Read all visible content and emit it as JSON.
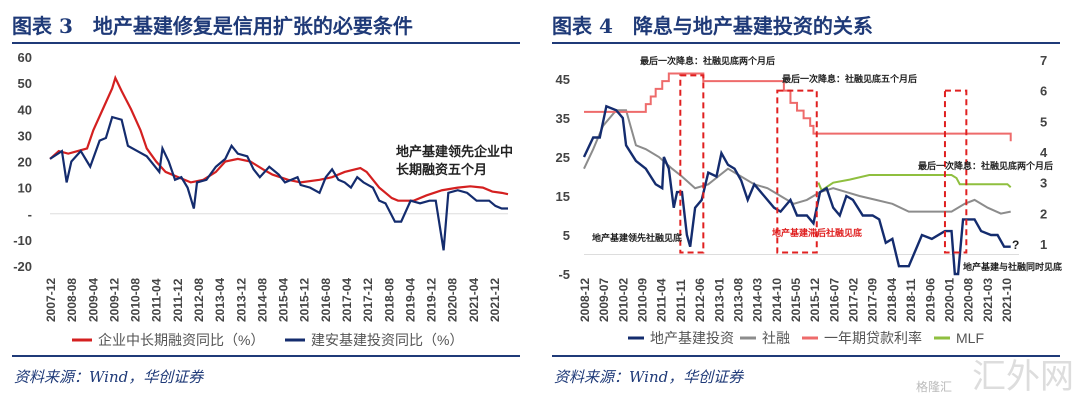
{
  "source": "资料来源：Wind，华创证券",
  "watermark": "汇外网",
  "watermark2": "格隆汇",
  "chart_data": [
    {
      "type": "line",
      "title": "图表 3　地产基建修复是信用扩张的必要条件",
      "ylim": [
        -20,
        60
      ],
      "yticks": [
        "60",
        "50",
        "40",
        "30",
        "20",
        "10",
        "-",
        "-10",
        "-20"
      ],
      "ytick_values": [
        60,
        50,
        40,
        30,
        20,
        10,
        0,
        -10,
        -20
      ],
      "xticks": [
        "2007-12",
        "2008-08",
        "2009-04",
        "2009-12",
        "2010-08",
        "2011-04",
        "2011-12",
        "2012-08",
        "2013-04",
        "2013-12",
        "2014-08",
        "2015-04",
        "2015-12",
        "2016-08",
        "2017-04",
        "2017-12",
        "2018-08",
        "2019-04",
        "2019-12",
        "2020-08",
        "2021-04",
        "2021-12"
      ],
      "xlim": [
        2007.92,
        2022.5
      ],
      "annotation": [
        "地产基建领先企业中",
        "长期融资五个月"
      ],
      "series": [
        {
          "name": "企业中长期融资同比（%）",
          "color": "#d42020",
          "x": [
            2007.92,
            2008.2,
            2008.5,
            2008.8,
            2009.1,
            2009.3,
            2009.6,
            2009.9,
            2010.0,
            2010.2,
            2010.5,
            2010.8,
            2011.0,
            2011.3,
            2011.6,
            2012.0,
            2012.4,
            2012.8,
            2013.2,
            2013.5,
            2013.9,
            2014.3,
            2014.7,
            2015.0,
            2015.5,
            2015.9,
            2016.5,
            2016.9,
            2017.3,
            2017.8,
            2018.0,
            2018.4,
            2018.8,
            2019.0,
            2019.5,
            2019.9,
            2020.4,
            2020.9,
            2021.3,
            2021.7,
            2022.0,
            2022.3,
            2022.5
          ],
          "y": [
            21,
            24,
            23,
            24,
            25,
            32,
            40,
            48,
            52,
            47,
            40,
            32,
            25,
            20,
            16,
            14,
            12,
            13,
            16,
            20,
            21,
            20,
            17,
            15,
            13,
            12,
            13,
            14,
            16,
            17.5,
            16,
            10,
            6,
            5,
            5,
            7,
            9,
            10,
            10.5,
            10,
            8.5,
            8,
            7.5
          ]
        },
        {
          "name": "建安基建投资同比（%）",
          "color": "#142c6e",
          "x": [
            2007.92,
            2008.3,
            2008.45,
            2008.6,
            2008.9,
            2009.1,
            2009.2,
            2009.5,
            2009.7,
            2009.9,
            2010.2,
            2010.4,
            2010.7,
            2011.0,
            2011.2,
            2011.4,
            2011.5,
            2011.7,
            2011.9,
            2012.1,
            2012.3,
            2012.5,
            2012.6,
            2012.9,
            2013.2,
            2013.5,
            2013.7,
            2013.9,
            2014.2,
            2014.4,
            2014.6,
            2014.9,
            2015.2,
            2015.4,
            2015.8,
            2015.9,
            2016.2,
            2016.5,
            2016.7,
            2016.9,
            2017.1,
            2017.3,
            2017.5,
            2017.7,
            2017.9,
            2018.2,
            2018.4,
            2018.6,
            2018.9,
            2019.1,
            2019.4,
            2019.7,
            2020.0,
            2020.2,
            2020.45,
            2020.6,
            2020.9,
            2021.2,
            2021.5,
            2021.9,
            2022.1,
            2022.3,
            2022.5
          ],
          "y": [
            21,
            24,
            12,
            20,
            24,
            20,
            18,
            28,
            29,
            37,
            36,
            26,
            24,
            22,
            19,
            16,
            25,
            20,
            13,
            14,
            10,
            2,
            12,
            13,
            18,
            21,
            26,
            23,
            22,
            17,
            14,
            18,
            15,
            12,
            14,
            11,
            10,
            8,
            14,
            17,
            13,
            12,
            10,
            14,
            12,
            10,
            5,
            4,
            -3,
            -3,
            5,
            4,
            5,
            5,
            -14,
            8,
            9,
            8,
            5,
            5,
            3,
            2,
            2
          ]
        }
      ]
    },
    {
      "type": "line",
      "title": "图表 4　降息与地产基建投资的关系",
      "ylim": [
        -5,
        50
      ],
      "ylim_right": [
        0,
        7
      ],
      "yticks": [
        "45",
        "35",
        "25",
        "15",
        "5",
        "-5"
      ],
      "ytick_values": [
        45,
        35,
        25,
        15,
        5,
        -5
      ],
      "yticks_right": [
        "7",
        "6",
        "5",
        "4",
        "3",
        "2",
        "1"
      ],
      "ytick_right_values": [
        7,
        6,
        5,
        4,
        3,
        2,
        1
      ],
      "xticks": [
        "2008-12",
        "2009-07",
        "2010-02",
        "2010-09",
        "2011-04",
        "2011-11",
        "2012-06",
        "2013-01",
        "2013-08",
        "2014-03",
        "2014-10",
        "2015-05",
        "2015-12",
        "2016-07",
        "2017-02",
        "2017-09",
        "2018-04",
        "2018-11",
        "2019-06",
        "2020-01",
        "2020-08",
        "2021-03",
        "2021-10"
      ],
      "xlim": [
        2008.92,
        2022.0
      ],
      "annotations": [
        "最后一次降息：社融见底两个月后",
        "最后一次降息：社融见底五个月后",
        "最后一次降息：社融见底两个月后",
        "地产基建领先社融见底",
        "地产基建滞后社融见底",
        "地产基建与社融同时见底",
        "?"
      ],
      "highlight_boxes": [
        [
          2011.85,
          2012.55
        ],
        [
          2014.8,
          2016.0
        ],
        [
          2019.9,
          2020.55
        ]
      ],
      "series": [
        {
          "name": "地产基建投资",
          "axis": "left",
          "color": "#142c6e",
          "x": [
            2008.92,
            2009.2,
            2009.4,
            2009.6,
            2009.9,
            2010.1,
            2010.2,
            2010.5,
            2010.8,
            2011.1,
            2011.3,
            2011.35,
            2011.5,
            2011.65,
            2011.75,
            2011.9,
            2012.05,
            2012.15,
            2012.3,
            2012.5,
            2012.7,
            2012.95,
            2013.1,
            2013.3,
            2013.5,
            2013.7,
            2013.9,
            2014.1,
            2014.4,
            2014.7,
            2014.9,
            2015.2,
            2015.4,
            2015.7,
            2015.9,
            2016.1,
            2016.3,
            2016.5,
            2016.7,
            2016.9,
            2017.1,
            2017.4,
            2017.7,
            2017.9,
            2018.1,
            2018.3,
            2018.5,
            2018.8,
            2019.0,
            2019.2,
            2019.5,
            2019.9,
            2020.1,
            2020.2,
            2020.3,
            2020.45,
            2020.8,
            2021.0,
            2021.3,
            2021.5,
            2021.7,
            2021.9
          ],
          "y": [
            25,
            30,
            30,
            38,
            37,
            35,
            28,
            24,
            22,
            18,
            17,
            25,
            22,
            12,
            16,
            16,
            5,
            2,
            12,
            14,
            21,
            20,
            26,
            23,
            22,
            19,
            14,
            18,
            15,
            12,
            11,
            14,
            10,
            10,
            8,
            16,
            17,
            12,
            10,
            15,
            14,
            10,
            10,
            9,
            3,
            4,
            -3,
            -3,
            1,
            5,
            4,
            6,
            6,
            -5,
            -5,
            9,
            9,
            6,
            5,
            5,
            2,
            2
          ]
        },
        {
          "name": "社融",
          "axis": "left",
          "color": "#8c8c8c",
          "x": [
            2008.92,
            2009.2,
            2009.5,
            2009.9,
            2010.2,
            2010.5,
            2010.8,
            2011.2,
            2011.6,
            2011.9,
            2012.3,
            2012.7,
            2013.0,
            2013.3,
            2013.7,
            2014.1,
            2014.5,
            2014.9,
            2015.3,
            2015.7,
            2016.1,
            2016.5,
            2016.9,
            2017.3,
            2017.8,
            2018.3,
            2018.8,
            2019.2,
            2019.7,
            2020.1,
            2020.5,
            2020.8,
            2021.2,
            2021.6,
            2021.9
          ],
          "y": [
            22,
            27,
            33,
            37,
            37,
            28,
            27,
            25,
            22,
            20,
            17,
            18,
            20,
            22,
            20,
            18,
            17,
            15,
            13,
            14,
            16,
            17,
            16,
            15,
            14,
            13,
            11,
            11,
            11,
            11,
            13,
            14,
            12,
            10.5,
            11
          ]
        },
        {
          "name": "一年期贷款利率",
          "axis": "right",
          "color": "#ee6b6b",
          "x": [
            2008.92,
            2010.7,
            2010.8,
            2010.95,
            2011.1,
            2011.3,
            2011.5,
            2012.45,
            2012.55,
            2014.85,
            2015.0,
            2015.2,
            2015.4,
            2015.6,
            2015.8,
            2015.9,
            2021.9
          ],
          "y": [
            5.31,
            5.31,
            5.56,
            5.81,
            6.06,
            6.31,
            6.56,
            6.56,
            6.31,
            6.31,
            6.0,
            5.6,
            5.35,
            5.1,
            4.85,
            4.6,
            4.35
          ],
          "step": true
        },
        {
          "name": "MLF",
          "axis": "right",
          "color": "#8fbf3f",
          "x": [
            2016.05,
            2016.15,
            2016.5,
            2017.0,
            2017.6,
            2020.1,
            2020.25,
            2020.35,
            2021.8,
            2021.9
          ],
          "y": [
            3.0,
            2.75,
            3.0,
            3.1,
            3.25,
            3.25,
            3.15,
            2.95,
            2.95,
            2.85
          ]
        }
      ]
    }
  ]
}
